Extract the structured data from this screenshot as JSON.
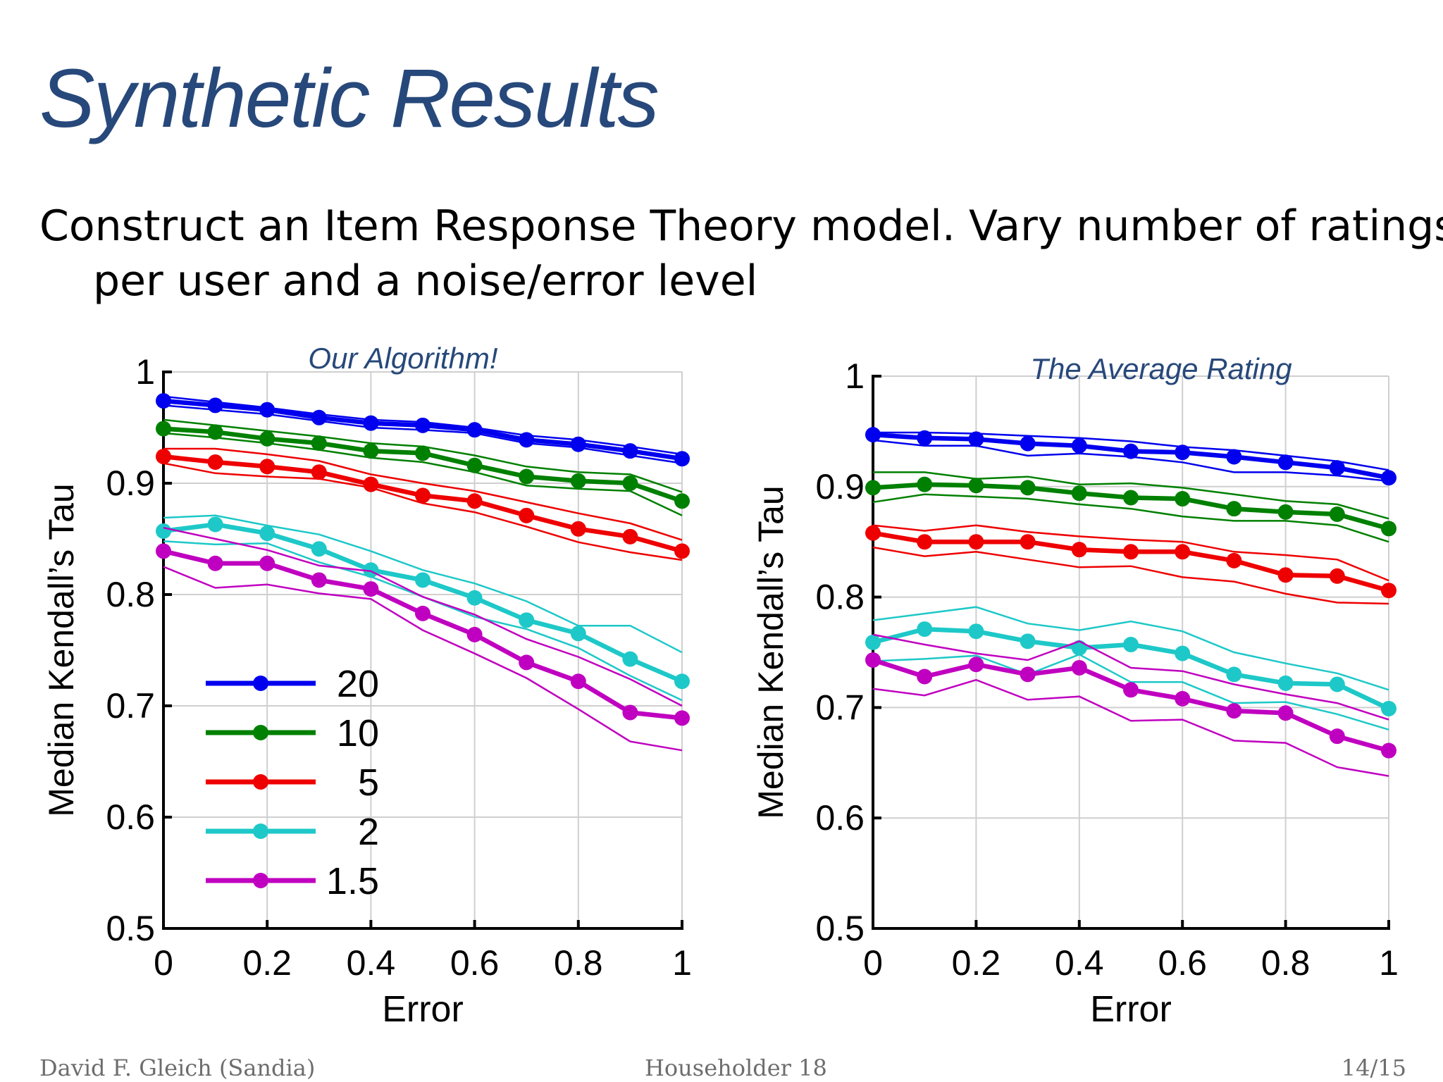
{
  "slide": {
    "title": "Synthetic Results",
    "subtitle": "Construct an Item Response Theory model.  Vary number of ratings per user and a noise/error level"
  },
  "footer": {
    "author": "David F. Gleich (Sandia)",
    "event": "Householder 18",
    "page": "14/15"
  },
  "colors": {
    "20": "#0000ee",
    "10": "#008000",
    "5": "#ee0000",
    "2": "#1ec8c8",
    "1.5": "#c000c0"
  },
  "chart_data": [
    {
      "type": "line",
      "title": "Our Algorithm!",
      "xlabel": "Error",
      "ylabel": "Median Kendall’s Tau",
      "xlim": [
        0,
        1
      ],
      "ylim": [
        0.5,
        1
      ],
      "xticks": [
        "0",
        "0.2",
        "0.4",
        "0.6",
        "0.8",
        "1"
      ],
      "yticks": [
        "0.5",
        "0.6",
        "0.7",
        "0.8",
        "0.9",
        "1"
      ],
      "grid": true,
      "legend": "bottom-left",
      "x": [
        0,
        0.1,
        0.2,
        0.3,
        0.4,
        0.5,
        0.6,
        0.7,
        0.8,
        0.9,
        1.0
      ],
      "series": [
        {
          "name": "20",
          "values": [
            0.974,
            0.97,
            0.966,
            0.959,
            0.954,
            0.952,
            0.948,
            0.939,
            0.935,
            0.929,
            0.922
          ],
          "upper": [
            0.978,
            0.973,
            0.968,
            0.962,
            0.957,
            0.955,
            0.95,
            0.943,
            0.939,
            0.933,
            0.926
          ],
          "lower": [
            0.97,
            0.966,
            0.962,
            0.956,
            0.95,
            0.948,
            0.945,
            0.936,
            0.932,
            0.925,
            0.918
          ]
        },
        {
          "name": "10",
          "values": [
            0.949,
            0.946,
            0.94,
            0.936,
            0.929,
            0.927,
            0.916,
            0.906,
            0.902,
            0.9,
            0.884
          ],
          "upper": [
            0.957,
            0.952,
            0.947,
            0.942,
            0.936,
            0.933,
            0.925,
            0.915,
            0.91,
            0.908,
            0.892
          ],
          "lower": [
            0.945,
            0.941,
            0.936,
            0.93,
            0.923,
            0.919,
            0.91,
            0.898,
            0.895,
            0.893,
            0.871
          ]
        },
        {
          "name": "5",
          "values": [
            0.924,
            0.919,
            0.915,
            0.91,
            0.899,
            0.889,
            0.884,
            0.871,
            0.859,
            0.852,
            0.839
          ],
          "upper": [
            0.931,
            0.931,
            0.926,
            0.92,
            0.908,
            0.9,
            0.893,
            0.883,
            0.873,
            0.864,
            0.849
          ],
          "lower": [
            0.918,
            0.909,
            0.906,
            0.904,
            0.896,
            0.882,
            0.874,
            0.861,
            0.847,
            0.838,
            0.831
          ]
        },
        {
          "name": "2",
          "values": [
            0.857,
            0.863,
            0.855,
            0.841,
            0.822,
            0.813,
            0.797,
            0.777,
            0.765,
            0.742,
            0.722
          ],
          "upper": [
            0.869,
            0.871,
            0.862,
            0.854,
            0.839,
            0.822,
            0.81,
            0.794,
            0.772,
            0.772,
            0.748
          ],
          "lower": [
            0.848,
            0.845,
            0.846,
            0.829,
            0.816,
            0.798,
            0.78,
            0.769,
            0.752,
            0.727,
            0.705
          ]
        },
        {
          "name": "1.5",
          "values": [
            0.839,
            0.828,
            0.828,
            0.813,
            0.805,
            0.783,
            0.764,
            0.739,
            0.722,
            0.694,
            0.689
          ],
          "upper": [
            0.86,
            0.85,
            0.84,
            0.826,
            0.821,
            0.798,
            0.782,
            0.76,
            0.744,
            0.724,
            0.7
          ],
          "lower": [
            0.825,
            0.806,
            0.809,
            0.801,
            0.796,
            0.768,
            0.747,
            0.725,
            0.697,
            0.668,
            0.66
          ]
        }
      ]
    },
    {
      "type": "line",
      "title": "The Average Rating",
      "xlabel": "Error",
      "ylabel": "Median Kendall’s Tau",
      "xlim": [
        0,
        1
      ],
      "ylim": [
        0.5,
        1
      ],
      "xticks": [
        "0",
        "0.2",
        "0.4",
        "0.6",
        "0.8",
        "1"
      ],
      "yticks": [
        "0.5",
        "0.6",
        "0.7",
        "0.8",
        "0.9",
        "1"
      ],
      "grid": true,
      "legend": "none",
      "x": [
        0,
        0.1,
        0.2,
        0.3,
        0.4,
        0.5,
        0.6,
        0.7,
        0.8,
        0.9,
        1.0
      ],
      "series": [
        {
          "name": "20",
          "values": [
            0.947,
            0.944,
            0.943,
            0.939,
            0.937,
            0.932,
            0.931,
            0.927,
            0.922,
            0.917,
            0.908
          ],
          "upper": [
            0.949,
            0.949,
            0.948,
            0.946,
            0.944,
            0.941,
            0.936,
            0.933,
            0.928,
            0.923,
            0.915
          ],
          "lower": [
            0.942,
            0.937,
            0.937,
            0.928,
            0.93,
            0.927,
            0.922,
            0.913,
            0.913,
            0.91,
            0.905
          ]
        },
        {
          "name": "10",
          "values": [
            0.899,
            0.902,
            0.901,
            0.899,
            0.894,
            0.89,
            0.889,
            0.88,
            0.877,
            0.875,
            0.862
          ],
          "upper": [
            0.913,
            0.913,
            0.907,
            0.909,
            0.902,
            0.903,
            0.899,
            0.893,
            0.887,
            0.884,
            0.871
          ],
          "lower": [
            0.886,
            0.893,
            0.891,
            0.889,
            0.884,
            0.88,
            0.873,
            0.869,
            0.869,
            0.865,
            0.85
          ]
        },
        {
          "name": "5",
          "values": [
            0.858,
            0.85,
            0.85,
            0.85,
            0.843,
            0.841,
            0.841,
            0.833,
            0.82,
            0.819,
            0.806
          ],
          "upper": [
            0.865,
            0.86,
            0.865,
            0.859,
            0.855,
            0.852,
            0.85,
            0.841,
            0.838,
            0.834,
            0.815
          ],
          "lower": [
            0.845,
            0.837,
            0.841,
            0.834,
            0.827,
            0.828,
            0.818,
            0.814,
            0.803,
            0.795,
            0.794
          ]
        },
        {
          "name": "2",
          "values": [
            0.759,
            0.771,
            0.769,
            0.76,
            0.754,
            0.757,
            0.749,
            0.73,
            0.722,
            0.721,
            0.699
          ],
          "upper": [
            0.779,
            0.785,
            0.791,
            0.776,
            0.77,
            0.778,
            0.769,
            0.75,
            0.74,
            0.731,
            0.716
          ],
          "lower": [
            0.742,
            0.744,
            0.747,
            0.73,
            0.748,
            0.723,
            0.723,
            0.704,
            0.705,
            0.694,
            0.68
          ]
        },
        {
          "name": "1.5",
          "values": [
            0.743,
            0.728,
            0.739,
            0.73,
            0.736,
            0.716,
            0.708,
            0.697,
            0.695,
            0.674,
            0.661
          ],
          "upper": [
            0.766,
            0.757,
            0.749,
            0.743,
            0.76,
            0.736,
            0.733,
            0.721,
            0.712,
            0.704,
            0.689
          ],
          "lower": [
            0.717,
            0.711,
            0.725,
            0.707,
            0.71,
            0.688,
            0.689,
            0.67,
            0.668,
            0.646,
            0.638
          ]
        }
      ]
    }
  ]
}
